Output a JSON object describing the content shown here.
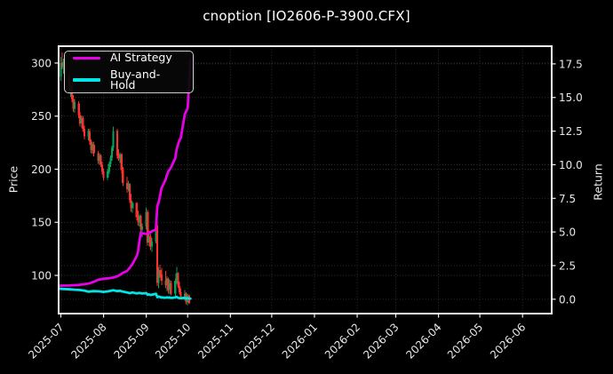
{
  "title": "cnoption [IO2606-P-3900.CFX]",
  "legend": {
    "position": "upper-left",
    "items": [
      {
        "label": "AI Strategy",
        "color": "#e800e8"
      },
      {
        "label": "Buy-and-Hold",
        "color": "#00e5e5"
      }
    ]
  },
  "chart_data": {
    "type": "candlestick",
    "title": "cnoption [IO2606-P-3900.CFX]",
    "xlabel": "",
    "grid": "dotted, both y-axes and monthly x ticks",
    "colors": {
      "background": "#000000",
      "up_candle": "#0aa058",
      "down_candle": "#fb3131",
      "grid": "#343434",
      "spine": "#f5f5f5",
      "tick_label": "#e8e8e8",
      "ai_strategy": "#e800e8",
      "buy_and_hold": "#00e5e5"
    },
    "left_axis": {
      "label": "Price",
      "ticks": [
        100,
        150,
        200,
        250,
        300
      ],
      "range": [
        64,
        316
      ]
    },
    "right_axis": {
      "label": "Return",
      "ticks": [
        0.0,
        2.5,
        5.0,
        7.5,
        10.0,
        12.5,
        15.0,
        17.5
      ],
      "range": [
        -1.05,
        18.85
      ]
    },
    "x_ticks": [
      "2025-07",
      "2025-08",
      "2025-09",
      "2025-10",
      "2025-11",
      "2025-12",
      "2026-01",
      "2026-02",
      "2026-03",
      "2026-04",
      "2026-05",
      "2026-06"
    ],
    "candles_ohlc_format": [
      "date",
      "open",
      "high",
      "low",
      "close"
    ],
    "candles": [
      [
        "2025-07-01",
        287,
        306,
        283,
        300
      ],
      [
        "2025-07-02",
        300,
        310,
        294,
        296
      ],
      [
        "2025-07-03",
        296,
        304,
        290,
        301
      ],
      [
        "2025-07-04",
        301,
        303,
        284,
        287
      ],
      [
        "2025-07-07",
        287,
        291,
        271,
        274
      ],
      [
        "2025-07-08",
        274,
        282,
        268,
        279
      ],
      [
        "2025-07-09",
        279,
        281,
        263,
        266
      ],
      [
        "2025-07-10",
        266,
        270,
        254,
        257
      ],
      [
        "2025-07-11",
        257,
        266,
        253,
        263
      ],
      [
        "2025-07-14",
        262,
        264,
        248,
        251
      ],
      [
        "2025-07-15",
        251,
        254,
        240,
        243
      ],
      [
        "2025-07-16",
        243,
        250,
        239,
        248
      ],
      [
        "2025-07-17",
        248,
        250,
        235,
        238
      ],
      [
        "2025-07-18",
        238,
        241,
        228,
        231
      ],
      [
        "2025-07-21",
        231,
        238,
        227,
        236
      ],
      [
        "2025-07-22",
        235,
        238,
        223,
        226
      ],
      [
        "2025-07-23",
        226,
        228,
        215,
        218
      ],
      [
        "2025-07-24",
        218,
        226,
        214,
        224
      ],
      [
        "2025-07-25",
        223,
        226,
        212,
        215
      ],
      [
        "2025-07-28",
        215,
        217,
        205,
        208
      ],
      [
        "2025-07-29",
        208,
        215,
        204,
        213
      ],
      [
        "2025-07-30",
        213,
        214,
        202,
        204
      ],
      [
        "2025-07-31",
        204,
        207,
        195,
        198
      ],
      [
        "2025-08-01",
        198,
        201,
        189,
        192
      ],
      [
        "2025-08-04",
        192,
        200,
        190,
        198
      ],
      [
        "2025-08-05",
        198,
        207,
        196,
        205
      ],
      [
        "2025-08-06",
        205,
        213,
        202,
        211
      ],
      [
        "2025-08-07",
        211,
        222,
        208,
        220
      ],
      [
        "2025-08-08",
        220,
        240,
        217,
        236
      ],
      [
        "2025-08-11",
        236,
        238,
        210,
        213
      ],
      [
        "2025-08-12",
        213,
        219,
        208,
        210
      ],
      [
        "2025-08-13",
        210,
        216,
        206,
        214
      ],
      [
        "2025-08-14",
        214,
        215,
        196,
        199
      ],
      [
        "2025-08-15",
        199,
        202,
        184,
        187
      ],
      [
        "2025-08-18",
        187,
        193,
        178,
        181
      ],
      [
        "2025-08-19",
        181,
        189,
        179,
        186
      ],
      [
        "2025-08-20",
        186,
        187,
        168,
        171
      ],
      [
        "2025-08-21",
        171,
        177,
        160,
        163
      ],
      [
        "2025-08-22",
        163,
        170,
        159,
        168
      ],
      [
        "2025-08-25",
        168,
        169,
        152,
        155
      ],
      [
        "2025-08-26",
        155,
        161,
        147,
        150
      ],
      [
        "2025-08-27",
        150,
        158,
        146,
        156
      ],
      [
        "2025-08-28",
        156,
        157,
        140,
        143
      ],
      [
        "2025-08-29",
        143,
        149,
        136,
        146
      ],
      [
        "2025-09-01",
        146,
        164,
        143,
        160
      ],
      [
        "2025-09-02",
        160,
        162,
        128,
        131
      ],
      [
        "2025-09-03",
        131,
        140,
        127,
        137
      ],
      [
        "2025-09-04",
        137,
        139,
        124,
        127
      ],
      [
        "2025-09-05",
        127,
        135,
        122,
        132
      ],
      [
        "2025-09-08",
        132,
        149,
        130,
        147
      ],
      [
        "2025-09-09",
        147,
        150,
        90,
        93
      ],
      [
        "2025-09-10",
        93,
        108,
        88,
        105
      ],
      [
        "2025-09-11",
        105,
        110,
        98,
        101
      ],
      [
        "2025-09-12",
        101,
        107,
        91,
        95
      ],
      [
        "2025-09-15",
        95,
        104,
        88,
        91
      ],
      [
        "2025-09-16",
        91,
        99,
        85,
        97
      ],
      [
        "2025-09-17",
        97,
        98,
        83,
        86
      ],
      [
        "2025-09-18",
        86,
        96,
        82,
        93
      ],
      [
        "2025-09-19",
        93,
        95,
        81,
        83
      ],
      [
        "2025-09-22",
        83,
        97,
        80,
        95
      ],
      [
        "2025-09-23",
        95,
        108,
        92,
        102
      ],
      [
        "2025-09-24",
        102,
        103,
        88,
        90
      ],
      [
        "2025-09-25",
        90,
        94,
        82,
        84
      ],
      [
        "2025-09-26",
        84,
        88,
        78,
        80
      ],
      [
        "2025-09-29",
        80,
        86,
        76,
        83
      ],
      [
        "2025-09-30",
        83,
        84,
        73,
        75
      ],
      [
        "2025-10-01",
        75,
        83,
        72,
        81
      ],
      [
        "2025-10-02",
        81,
        82,
        73,
        74
      ]
    ],
    "series": [
      {
        "name": "AI Strategy",
        "axis": "return",
        "color": "#e800e8",
        "points": [
          [
            "2025-06-30",
            1.0
          ],
          [
            "2025-07-02",
            1.01
          ],
          [
            "2025-07-07",
            1.02
          ],
          [
            "2025-07-10",
            1.04
          ],
          [
            "2025-07-14",
            1.06
          ],
          [
            "2025-07-17",
            1.1
          ],
          [
            "2025-07-21",
            1.16
          ],
          [
            "2025-07-23",
            1.22
          ],
          [
            "2025-07-25",
            1.3
          ],
          [
            "2025-07-28",
            1.44
          ],
          [
            "2025-07-30",
            1.48
          ],
          [
            "2025-08-01",
            1.52
          ],
          [
            "2025-08-05",
            1.56
          ],
          [
            "2025-08-07",
            1.6
          ],
          [
            "2025-08-08",
            1.62
          ],
          [
            "2025-08-11",
            1.7
          ],
          [
            "2025-08-13",
            1.82
          ],
          [
            "2025-08-15",
            1.96
          ],
          [
            "2025-08-18",
            2.1
          ],
          [
            "2025-08-20",
            2.35
          ],
          [
            "2025-08-22",
            2.62
          ],
          [
            "2025-08-25",
            3.2
          ],
          [
            "2025-08-26",
            3.55
          ],
          [
            "2025-08-27",
            4.3
          ],
          [
            "2025-08-28",
            4.96
          ],
          [
            "2025-08-29",
            4.9
          ],
          [
            "2025-09-01",
            4.85
          ],
          [
            "2025-09-02",
            4.92
          ],
          [
            "2025-09-03",
            5.0
          ],
          [
            "2025-09-04",
            4.95
          ],
          [
            "2025-09-05",
            5.05
          ],
          [
            "2025-09-08",
            5.18
          ],
          [
            "2025-09-09",
            6.94
          ],
          [
            "2025-09-10",
            7.2
          ],
          [
            "2025-09-11",
            7.7
          ],
          [
            "2025-09-12",
            8.26
          ],
          [
            "2025-09-15",
            8.9
          ],
          [
            "2025-09-16",
            9.25
          ],
          [
            "2025-09-17",
            9.5
          ],
          [
            "2025-09-18",
            9.65
          ],
          [
            "2025-09-19",
            9.81
          ],
          [
            "2025-09-22",
            10.5
          ],
          [
            "2025-09-23",
            11.13
          ],
          [
            "2025-09-24",
            11.5
          ],
          [
            "2025-09-25",
            11.8
          ],
          [
            "2025-09-26",
            12.0
          ],
          [
            "2025-09-29",
            13.77
          ],
          [
            "2025-09-30",
            14.0
          ],
          [
            "2025-10-01",
            14.2
          ],
          [
            "2025-10-02",
            15.97
          ],
          [
            "2025-10-03",
            17.75
          ]
        ]
      },
      {
        "name": "Buy-and-Hold",
        "axis": "return",
        "color": "#00e5e5",
        "points": [
          [
            "2025-06-30",
            0.78
          ],
          [
            "2025-07-03",
            0.76
          ],
          [
            "2025-07-08",
            0.73
          ],
          [
            "2025-07-11",
            0.71
          ],
          [
            "2025-07-15",
            0.68
          ],
          [
            "2025-07-18",
            0.64
          ],
          [
            "2025-07-21",
            0.56
          ],
          [
            "2025-07-23",
            0.58
          ],
          [
            "2025-07-25",
            0.6
          ],
          [
            "2025-07-29",
            0.58
          ],
          [
            "2025-08-01",
            0.54
          ],
          [
            "2025-08-04",
            0.58
          ],
          [
            "2025-08-06",
            0.62
          ],
          [
            "2025-08-08",
            0.67
          ],
          [
            "2025-08-11",
            0.6
          ],
          [
            "2025-08-13",
            0.63
          ],
          [
            "2025-08-15",
            0.56
          ],
          [
            "2025-08-18",
            0.5
          ],
          [
            "2025-08-20",
            0.45
          ],
          [
            "2025-08-22",
            0.5
          ],
          [
            "2025-08-25",
            0.43
          ],
          [
            "2025-08-27",
            0.46
          ],
          [
            "2025-08-29",
            0.42
          ],
          [
            "2025-09-01",
            0.45
          ],
          [
            "2025-09-02",
            0.33
          ],
          [
            "2025-09-03",
            0.36
          ],
          [
            "2025-09-04",
            0.32
          ],
          [
            "2025-09-05",
            0.34
          ],
          [
            "2025-09-08",
            0.4
          ],
          [
            "2025-09-09",
            0.15
          ],
          [
            "2025-09-10",
            0.2
          ],
          [
            "2025-09-11",
            0.16
          ],
          [
            "2025-09-12",
            0.13
          ],
          [
            "2025-09-15",
            0.11
          ],
          [
            "2025-09-16",
            0.14
          ],
          [
            "2025-09-17",
            0.11
          ],
          [
            "2025-09-18",
            0.13
          ],
          [
            "2025-09-19",
            0.09
          ],
          [
            "2025-09-22",
            0.14
          ],
          [
            "2025-09-23",
            0.17
          ],
          [
            "2025-09-24",
            0.11
          ],
          [
            "2025-09-25",
            0.08
          ],
          [
            "2025-09-26",
            0.07
          ],
          [
            "2025-09-29",
            0.1
          ],
          [
            "2025-09-30",
            0.05
          ],
          [
            "2025-10-01",
            0.08
          ],
          [
            "2025-10-02",
            0.05
          ],
          [
            "2025-10-03",
            0.04
          ]
        ]
      }
    ]
  }
}
